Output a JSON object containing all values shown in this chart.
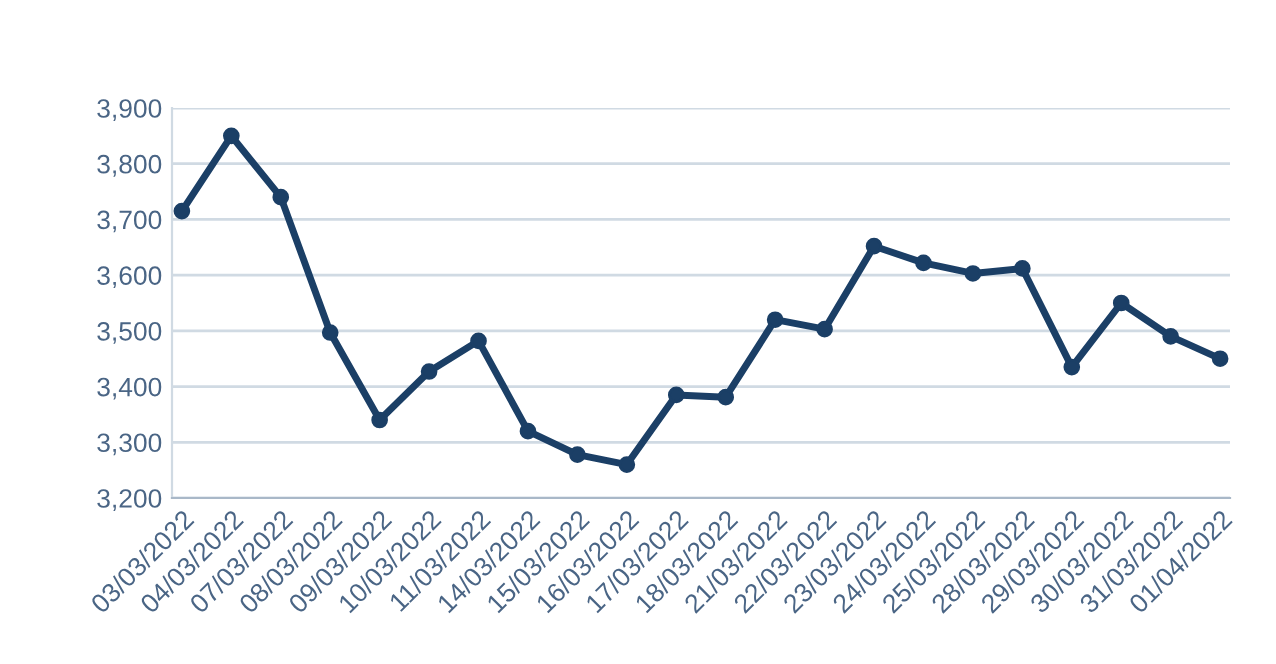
{
  "chart_data": {
    "type": "line",
    "categories": [
      "03/03/2022",
      "04/03/2022",
      "07/03/2022",
      "08/03/2022",
      "09/03/2022",
      "10/03/2022",
      "11/03/2022",
      "14/03/2022",
      "15/03/2022",
      "16/03/2022",
      "17/03/2022",
      "18/03/2022",
      "21/03/2022",
      "22/03/2022",
      "23/03/2022",
      "24/03/2022",
      "25/03/2022",
      "28/03/2022",
      "29/03/2022",
      "30/03/2022",
      "31/03/2022",
      "01/04/2022"
    ],
    "series": [
      {
        "color": "#1b3f66",
        "values": [
          3715,
          3850,
          3740,
          3497,
          3340,
          3427,
          3482,
          3320,
          3278,
          3260,
          3385,
          3381,
          3520,
          3503,
          3652,
          3622,
          3603,
          3612,
          3435,
          3550,
          3490,
          3450
        ]
      }
    ],
    "ylim": [
      3200,
      3900
    ],
    "yticks": [
      {
        "value": 3200,
        "label": "3,200"
      },
      {
        "value": 3300,
        "label": "3,300"
      },
      {
        "value": 3400,
        "label": "3,400"
      },
      {
        "value": 3500,
        "label": "3,500"
      },
      {
        "value": 3600,
        "label": "3,600"
      },
      {
        "value": 3700,
        "label": "3,700"
      },
      {
        "value": 3800,
        "label": "3,800"
      },
      {
        "value": 3900,
        "label": "3,900"
      }
    ],
    "grid": "y",
    "marker": "circle",
    "line_style": "solid",
    "legend": false
  }
}
